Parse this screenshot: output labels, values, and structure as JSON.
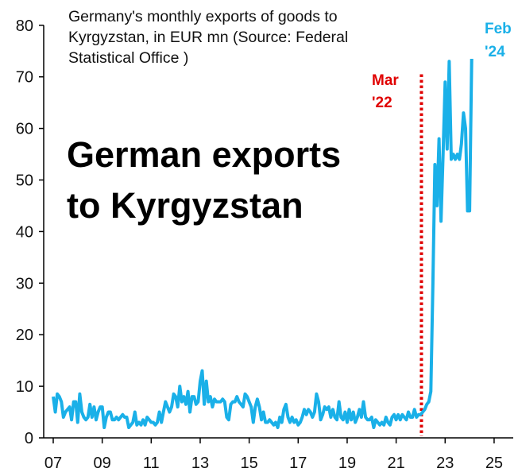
{
  "chart_data": {
    "type": "line",
    "title": "German exports to Kyrgyzstan",
    "subtitle": "Germany's monthly exports of goods to Kyrgyzstan, in EUR mn (Source: Federal Statistical Office )",
    "xlabel": "",
    "ylabel": "",
    "ylim": [
      0,
      80
    ],
    "xlim": [
      2006.5,
      2026
    ],
    "yticks": [
      "0",
      "10",
      "20",
      "30",
      "40",
      "50",
      "60",
      "70",
      "80"
    ],
    "xticks": [
      {
        "year": 2007,
        "label": "07"
      },
      {
        "year": 2009,
        "label": "09"
      },
      {
        "year": 2011,
        "label": "11"
      },
      {
        "year": 2013,
        "label": "13"
      },
      {
        "year": 2015,
        "label": "15"
      },
      {
        "year": 2017,
        "label": "17"
      },
      {
        "year": 2019,
        "label": "19"
      },
      {
        "year": 2021,
        "label": "21"
      },
      {
        "year": 2023,
        "label": "23"
      },
      {
        "year": 2025,
        "label": "25"
      }
    ],
    "grid": false,
    "series": [
      {
        "name": "Monthly exports (EUR mn)",
        "color": "#1ab0e8",
        "start_year": 2007,
        "start_month": 1,
        "values": [
          8,
          5,
          8.5,
          8,
          7,
          4,
          5,
          5.5,
          6,
          3.5,
          7,
          7,
          3,
          8.5,
          5,
          4,
          3.5,
          4,
          6.5,
          4,
          6,
          3.5,
          5,
          6,
          6,
          2,
          4,
          5,
          5,
          3.5,
          3.5,
          4,
          3.5,
          4,
          4.5,
          4,
          4,
          2,
          2.5,
          3,
          5,
          2.5,
          3,
          2.5,
          3.5,
          2.5,
          4,
          3.5,
          3,
          3,
          2.5,
          3,
          5,
          3,
          5,
          7,
          6,
          5,
          6,
          8.5,
          8,
          6,
          10,
          7,
          8,
          6.5,
          9,
          5,
          8,
          8,
          6.5,
          7,
          11,
          13,
          6.5,
          11,
          7,
          8,
          6,
          7.5,
          7,
          7,
          7,
          7.5,
          7,
          4,
          3.5,
          6.5,
          7,
          7,
          8,
          7,
          6.5,
          6,
          8.5,
          8,
          7,
          6,
          3,
          6,
          7.5,
          6,
          3.5,
          5,
          3,
          3,
          3.5,
          3,
          2.5,
          3,
          2,
          4,
          3,
          5.5,
          6.5,
          4,
          3,
          4,
          3,
          3.5,
          2.5,
          3,
          4,
          5.5,
          4.5,
          5.5,
          5,
          4,
          5,
          8.5,
          7,
          3.5,
          4.5,
          6,
          5.5,
          6,
          4,
          5.5,
          4,
          3.5,
          7,
          4,
          3.5,
          5,
          3,
          5.5,
          3.5,
          5,
          3,
          4,
          5.5,
          4,
          7,
          4,
          3.5,
          3.5,
          4,
          2,
          3.5,
          3,
          2.5,
          3,
          2.5,
          4,
          3,
          2.5,
          4,
          4.5,
          3.5,
          4.5,
          3.5,
          4.5,
          4,
          3.5,
          5,
          4,
          4,
          5.5,
          4,
          4.5,
          4.5,
          5,
          5.5,
          6.5,
          7,
          9,
          30,
          53,
          45,
          58,
          42,
          55,
          69,
          56,
          73,
          54,
          55,
          54,
          55,
          54,
          57,
          63,
          60,
          44,
          44,
          73.5
        ]
      }
    ],
    "annotations": [
      {
        "text_line1": "Mar",
        "text_line2": "'22",
        "x": 2022.0,
        "color": "#e00000",
        "style": "dotted vertical line"
      },
      {
        "text_line1": "Feb",
        "text_line2": "'24",
        "color": "#1ab0e8"
      }
    ]
  }
}
